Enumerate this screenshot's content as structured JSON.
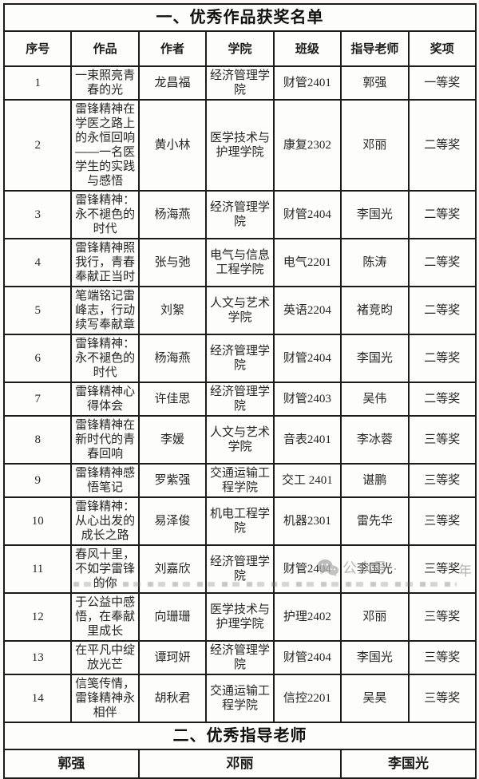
{
  "section1": {
    "title": "一、优秀作品获奖名单",
    "columns": [
      "序号",
      "作品",
      "作者",
      "学院",
      "班级",
      "指导老师",
      "奖项"
    ],
    "rows": [
      {
        "no": "1",
        "work": "一束照亮青春的光",
        "author": "龙昌福",
        "college": "经济管理学院",
        "class": "财管2401",
        "teacher": "郭强",
        "award": "一等奖"
      },
      {
        "no": "2",
        "work": "雷锋精神在学医之路上的永恒回响——一名医学生的实践与感悟",
        "author": "黄小林",
        "college": "医学技术与护理学院",
        "class": "康复2302",
        "teacher": "邓丽",
        "award": "二等奖"
      },
      {
        "no": "3",
        "work": "雷锋精神：永不褪色的时代",
        "author": "杨海燕",
        "college": "经济管理学院",
        "class": "财管2404",
        "teacher": "李国光",
        "award": "二等奖"
      },
      {
        "no": "4",
        "work": "雷锋精神照我行，青春奉献正当时",
        "author": "张与弛",
        "college": "电气与信息工程学院",
        "class": "电气2201",
        "teacher": "陈涛",
        "award": "二等奖"
      },
      {
        "no": "5",
        "work": "笔端铭记雷峰志，行动续写奉献章",
        "author": "刘絮",
        "college": "人文与艺术学院",
        "class": "英语2204",
        "teacher": "褚竞昀",
        "award": "二等奖"
      },
      {
        "no": "6",
        "work": "雷锋精神：永不褪色的时代",
        "author": "杨海燕",
        "college": "经济管理学院",
        "class": "财管2404",
        "teacher": "李国光",
        "award": "二等奖"
      },
      {
        "no": "7",
        "work": "雷锋精神心得体会",
        "author": "许佳思",
        "college": "经济管理学院",
        "class": "财管2403",
        "teacher": "吴伟",
        "award": "二等奖"
      },
      {
        "no": "8",
        "work": "雷锋精神在新时代的青春回响",
        "author": "李媛",
        "college": "人文与艺术学院",
        "class": "音表2401",
        "teacher": "李冰蓉",
        "award": "三等奖"
      },
      {
        "no": "9",
        "work": "雷锋精神感悟笔记",
        "author": "罗紫强",
        "college": "交通运输工程学院",
        "class": "交工 2401",
        "teacher": "谌鹏",
        "award": "三等奖"
      },
      {
        "no": "10",
        "work": "雷锋精神：从心出发的成长之路",
        "author": "易泽俊",
        "college": "机电工程学院",
        "class": "机器2301",
        "teacher": "雷先华",
        "award": "三等奖"
      },
      {
        "no": "11",
        "work": "春风十里，不如学雷锋的你",
        "author": "刘嘉欣",
        "college": "经济管理学院",
        "class": "财管2404",
        "teacher": "李国光",
        "award": "三等奖"
      },
      {
        "no": "12",
        "work": "于公益中感悟，在奉献里成长",
        "author": "向珊珊",
        "college": "医学技术与护理学院",
        "class": "护理2402",
        "teacher": "邓丽",
        "award": "三等奖"
      },
      {
        "no": "13",
        "work": "在平凡中绽放光芒",
        "author": "谭珂妍",
        "college": "经济管理学院",
        "class": "财管2404",
        "teacher": "李国光",
        "award": "三等奖"
      },
      {
        "no": "14",
        "work": "信笺传情，雷锋精神永相伴",
        "author": "胡秋君",
        "college": "交通运输工程学院",
        "class": "信控2201",
        "teacher": "吴昊",
        "award": "三等奖"
      }
    ]
  },
  "section2": {
    "title": "二、优秀指导老师",
    "teachers": [
      "郭强",
      "邓丽",
      "李国光"
    ]
  },
  "watermark": {
    "icon": "wechat-icon",
    "text": "公众号 ·",
    "suffix": "年",
    "color": "#a6a6a6"
  },
  "colors": {
    "border": "#1b1b1b",
    "text": "#262626",
    "background": "#fbfaf8"
  }
}
